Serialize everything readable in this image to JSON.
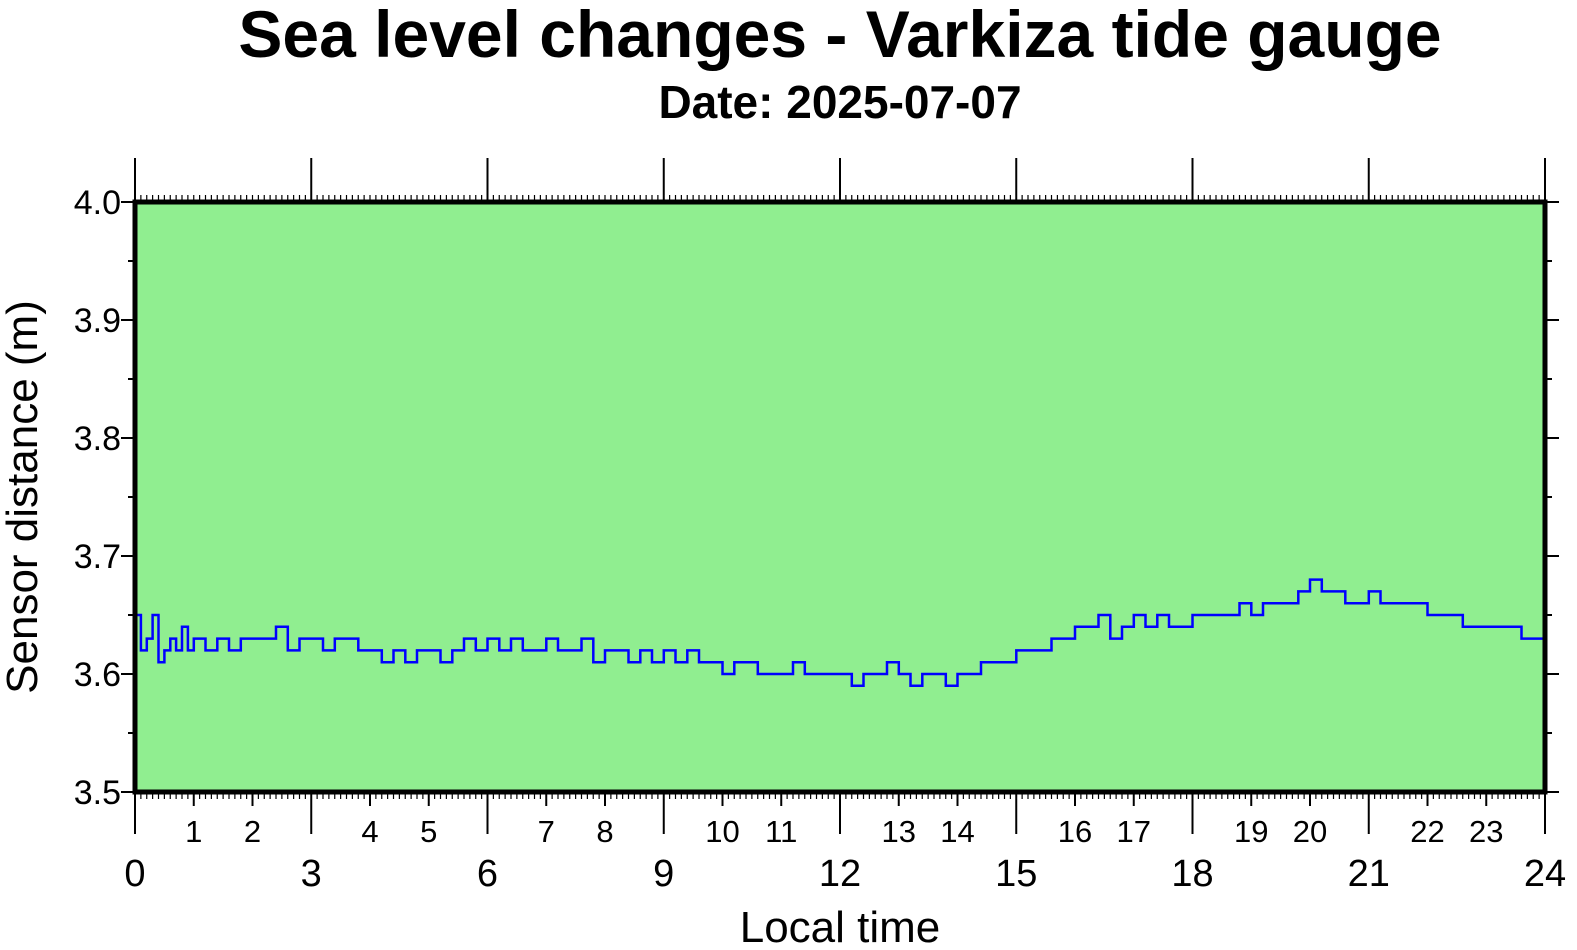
{
  "chart_data": {
    "type": "line",
    "title": "Sea level changes - Varkiza tide gauge",
    "subtitle": "Date: 2025-07-07",
    "xlabel": "Local time",
    "ylabel": "Sensor distance (m)",
    "xlim": [
      0,
      24
    ],
    "ylim": [
      3.5,
      4.0
    ],
    "y_ticks": [
      "3.5",
      "3.6",
      "3.7",
      "3.8",
      "3.9",
      "4.0"
    ],
    "x_major_ticks": [
      "0",
      "3",
      "6",
      "9",
      "12",
      "15",
      "18",
      "21",
      "24"
    ],
    "x_minor_ticks": [
      "1",
      "2",
      "4",
      "5",
      "7",
      "8",
      "10",
      "11",
      "13",
      "14",
      "16",
      "17",
      "19",
      "20",
      "22",
      "23"
    ],
    "grid": false,
    "colors": {
      "plot_background": "#90ee90",
      "line": "#0000ff",
      "frame": "#000000"
    },
    "series": [
      {
        "x": [
          0.0,
          0.1,
          0.2,
          0.3,
          0.4,
          0.5,
          0.6,
          0.7,
          0.8,
          0.9,
          1.0,
          1.2,
          1.4,
          1.6,
          1.8,
          2.0,
          2.2,
          2.4,
          2.6,
          2.8,
          3.0,
          3.2,
          3.4,
          3.6,
          3.8,
          4.0,
          4.2,
          4.4,
          4.6,
          4.8,
          5.0,
          5.2,
          5.4,
          5.6,
          5.8,
          6.0,
          6.2,
          6.4,
          6.6,
          6.8,
          7.0,
          7.2,
          7.4,
          7.6,
          7.8,
          8.0,
          8.2,
          8.4,
          8.6,
          8.8,
          9.0,
          9.2,
          9.4,
          9.6,
          9.8,
          10.0,
          10.2,
          10.4,
          10.6,
          10.8,
          11.0,
          11.2,
          11.4,
          11.6,
          11.8,
          12.0,
          12.2,
          12.4,
          12.6,
          12.8,
          13.0,
          13.2,
          13.4,
          13.6,
          13.8,
          14.0,
          14.2,
          14.4,
          14.6,
          14.8,
          15.0,
          15.2,
          15.4,
          15.6,
          15.8,
          16.0,
          16.2,
          16.4,
          16.6,
          16.8,
          17.0,
          17.2,
          17.4,
          17.6,
          17.8,
          18.0,
          18.2,
          18.4,
          18.6,
          18.8,
          19.0,
          19.2,
          19.4,
          19.6,
          19.8,
          20.0,
          20.2,
          20.4,
          20.6,
          20.8,
          21.0,
          21.2,
          21.4,
          21.6,
          21.8,
          22.0,
          22.2,
          22.4,
          22.6,
          22.8,
          23.0,
          23.2,
          23.4,
          23.6,
          23.8,
          24.0
        ],
        "values": [
          3.65,
          3.62,
          3.63,
          3.65,
          3.61,
          3.62,
          3.63,
          3.62,
          3.64,
          3.62,
          3.63,
          3.62,
          3.63,
          3.62,
          3.63,
          3.63,
          3.63,
          3.64,
          3.62,
          3.63,
          3.63,
          3.62,
          3.63,
          3.63,
          3.62,
          3.62,
          3.61,
          3.62,
          3.61,
          3.62,
          3.62,
          3.61,
          3.62,
          3.63,
          3.62,
          3.63,
          3.62,
          3.63,
          3.62,
          3.62,
          3.63,
          3.62,
          3.62,
          3.63,
          3.61,
          3.62,
          3.62,
          3.61,
          3.62,
          3.61,
          3.62,
          3.61,
          3.62,
          3.61,
          3.61,
          3.6,
          3.61,
          3.61,
          3.6,
          3.6,
          3.6,
          3.61,
          3.6,
          3.6,
          3.6,
          3.6,
          3.59,
          3.6,
          3.6,
          3.61,
          3.6,
          3.59,
          3.6,
          3.6,
          3.59,
          3.6,
          3.6,
          3.61,
          3.61,
          3.61,
          3.62,
          3.62,
          3.62,
          3.63,
          3.63,
          3.64,
          3.64,
          3.65,
          3.63,
          3.64,
          3.65,
          3.64,
          3.65,
          3.64,
          3.64,
          3.65,
          3.65,
          3.65,
          3.65,
          3.66,
          3.65,
          3.66,
          3.66,
          3.66,
          3.67,
          3.68,
          3.67,
          3.67,
          3.66,
          3.66,
          3.67,
          3.66,
          3.66,
          3.66,
          3.66,
          3.65,
          3.65,
          3.65,
          3.64,
          3.64,
          3.64,
          3.64,
          3.64,
          3.63,
          3.63,
          3.63
        ]
      }
    ]
  }
}
